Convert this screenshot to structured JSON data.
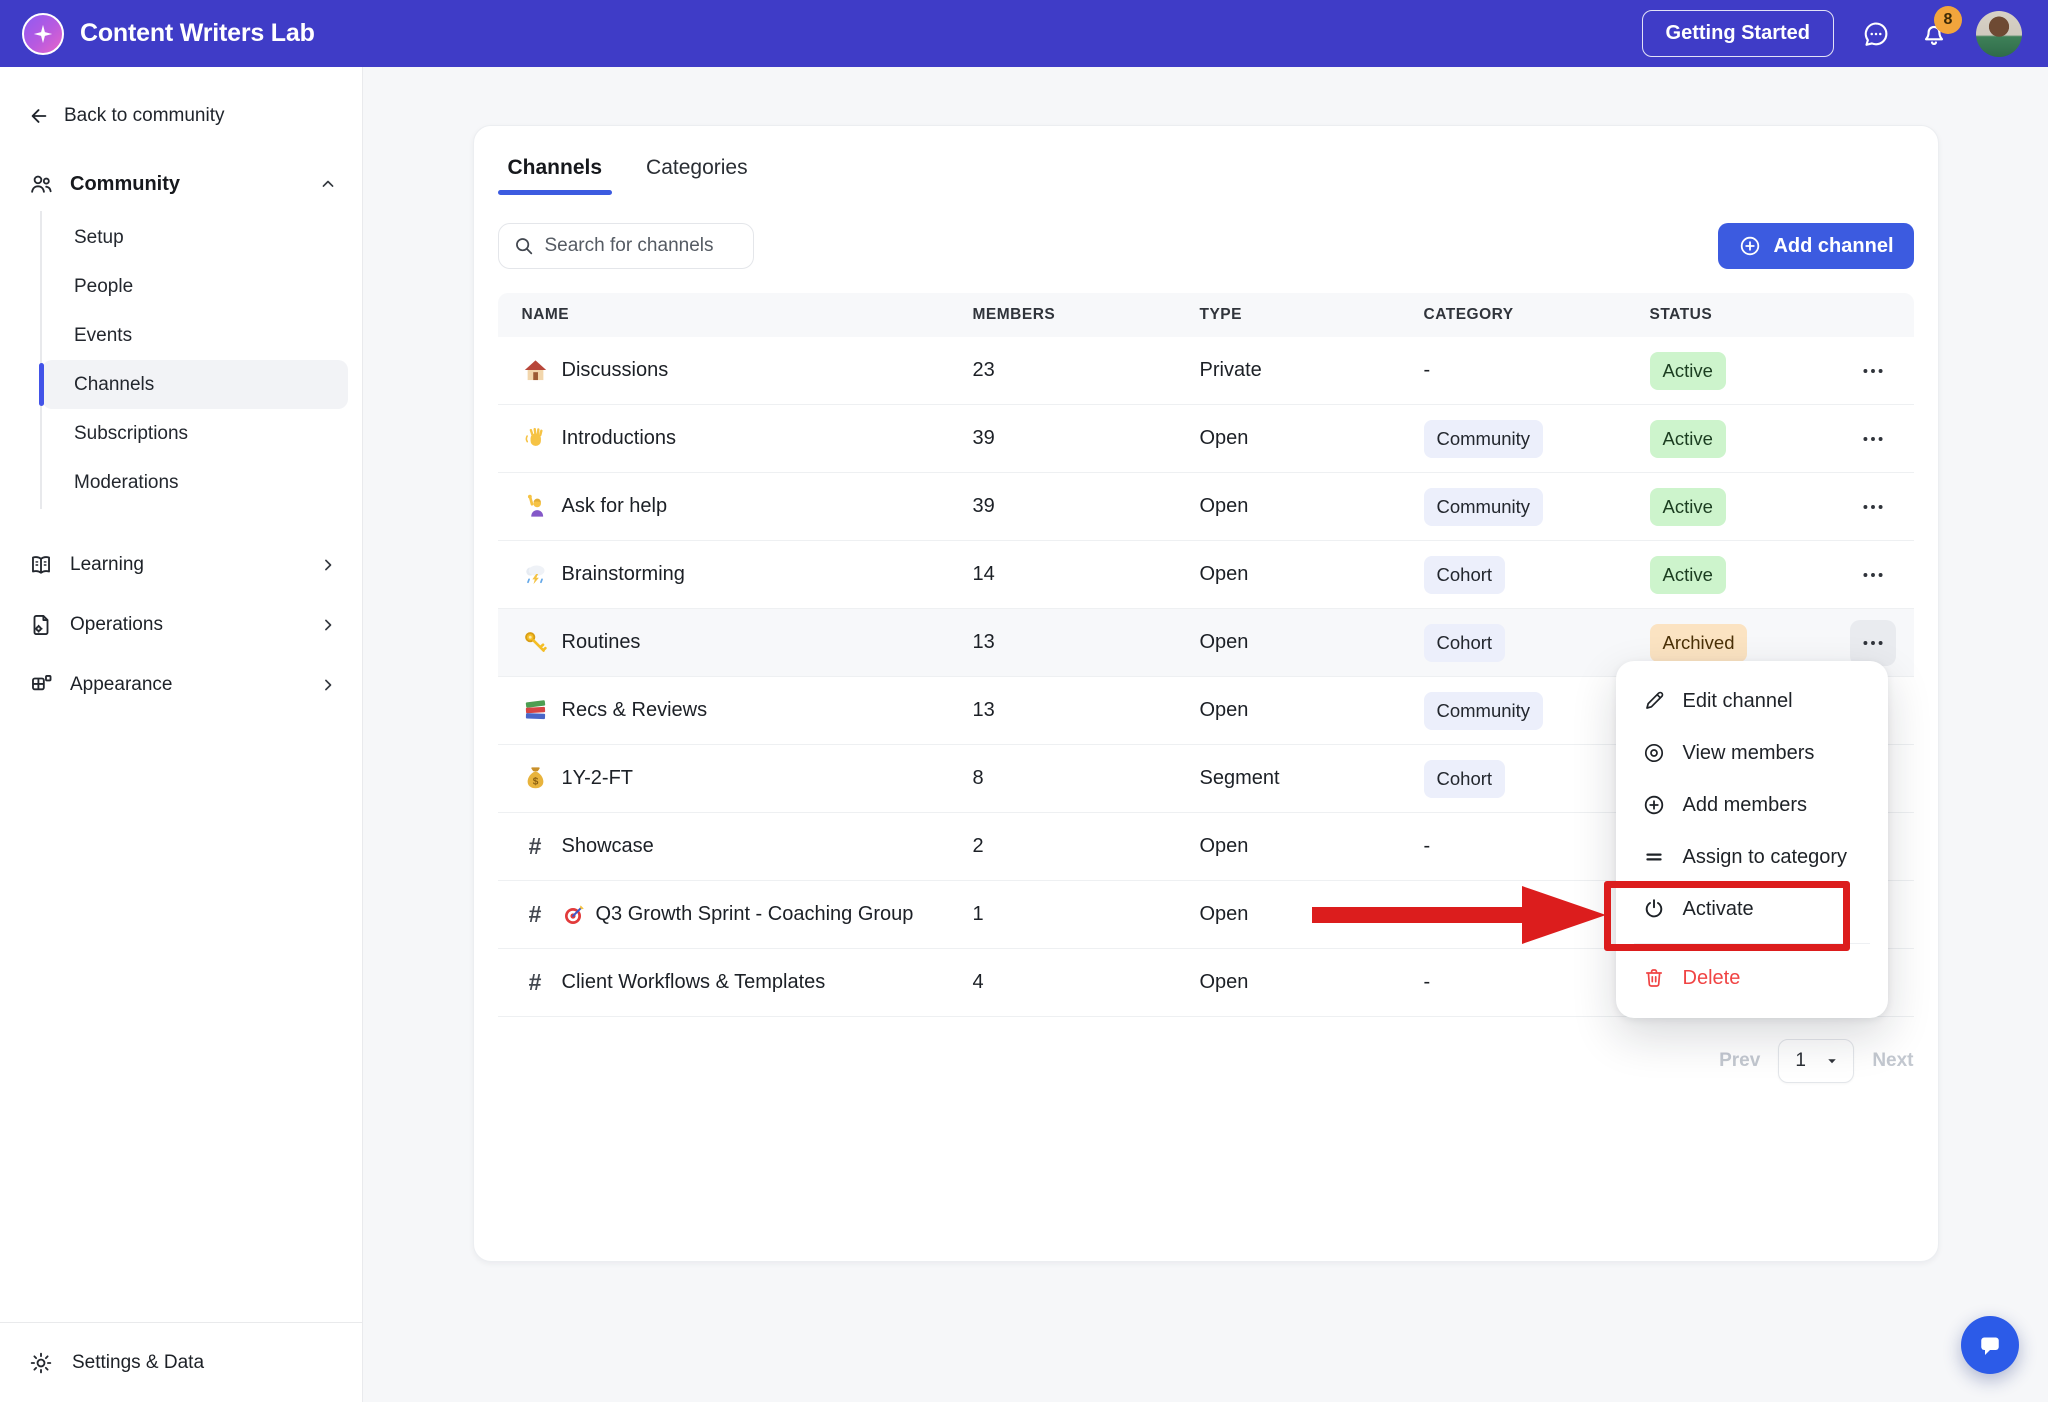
{
  "colors": {
    "topbar_bg": "#3F3CC7",
    "accent": "#3C5BE0",
    "active_badge_bg": "#CDF4CC",
    "active_badge_text": "#1B3D20",
    "archived_badge_bg": "#FBE3C2",
    "archived_badge_text": "#4A3007",
    "category_chip_bg": "#ECEFFB",
    "danger": "#F04444",
    "annotation_red": "#DC1D1D",
    "notification_badge_bg": "#F2A53C"
  },
  "topbar": {
    "brand": "Content Writers Lab",
    "logo_icon": "sparkle-icon",
    "getting_started_label": "Getting Started",
    "messages_icon": "chat-bubble-icon",
    "notifications_icon": "bell-icon",
    "notification_count": "8"
  },
  "sidebar": {
    "back_label": "Back to community",
    "community": {
      "label": "Community",
      "icon": "users-icon",
      "expanded": true,
      "items": [
        "Setup",
        "People",
        "Events",
        "Channels",
        "Subscriptions",
        "Moderations"
      ],
      "active_item": "Channels"
    },
    "sections": [
      {
        "label": "Learning",
        "icon": "book"
      },
      {
        "label": "Operations",
        "icon": "doc-gear"
      },
      {
        "label": "Appearance",
        "icon": "layout"
      }
    ],
    "footer_label": "Settings & Data",
    "footer_icon": "gear-icon"
  },
  "main": {
    "tabs": [
      {
        "label": "Channels",
        "active": true
      },
      {
        "label": "Categories",
        "active": false
      }
    ],
    "search_placeholder": "Search for channels",
    "add_channel_label": "Add channel",
    "table": {
      "headers": [
        "NAME",
        "MEMBERS",
        "TYPE",
        "CATEGORY",
        "STATUS"
      ],
      "rows": [
        {
          "icon": "house",
          "name": "Discussions",
          "members": "23",
          "type": "Private",
          "category": "-",
          "status": "Active",
          "status_kind": "active"
        },
        {
          "icon": "wave",
          "name": "Introductions",
          "members": "39",
          "type": "Open",
          "category": "Community",
          "status": "Active",
          "status_kind": "active"
        },
        {
          "icon": "raise",
          "name": "Ask for help",
          "members": "39",
          "type": "Open",
          "category": "Community",
          "status": "Active",
          "status_kind": "active"
        },
        {
          "icon": "storm",
          "name": "Brainstorming",
          "members": "14",
          "type": "Open",
          "category": "Cohort",
          "status": "Active",
          "status_kind": "active"
        },
        {
          "icon": "key",
          "name": "Routines",
          "members": "13",
          "type": "Open",
          "category": "Cohort",
          "status": "Archived",
          "status_kind": "archived",
          "highlighted": true,
          "menu_open": true
        },
        {
          "icon": "books",
          "name": "Recs & Reviews",
          "members": "13",
          "type": "Open",
          "category": "Community",
          "status": "",
          "status_kind": ""
        },
        {
          "icon": "moneybag",
          "name": "1Y-2-FT",
          "members": "8",
          "type": "Segment",
          "category": "Cohort",
          "status": "",
          "status_kind": ""
        },
        {
          "icon": "hash",
          "name": "Showcase",
          "members": "2",
          "type": "Open",
          "category": "-",
          "status": "",
          "status_kind": ""
        },
        {
          "icon": "hash",
          "name_emoji": "dart",
          "name": "Q3 Growth Sprint - Coaching Group",
          "members": "1",
          "type": "Open",
          "category": "-",
          "status": "",
          "status_kind": ""
        },
        {
          "icon": "hash",
          "name": "Client Workflows & Templates",
          "members": "4",
          "type": "Open",
          "category": "-",
          "status": "",
          "status_kind": ""
        }
      ]
    },
    "pagination": {
      "prev": "Prev",
      "page": "1",
      "next": "Next"
    }
  },
  "context_menu": {
    "items": [
      {
        "icon": "pencil-icon",
        "label": "Edit channel"
      },
      {
        "icon": "eye-icon",
        "label": "View members"
      },
      {
        "icon": "plus-circle-icon",
        "label": "Add members"
      },
      {
        "icon": "equals-icon",
        "label": "Assign to category"
      },
      {
        "icon": "power-icon",
        "label": "Activate",
        "annotated": true
      },
      {
        "icon": "trash-icon",
        "label": "Delete",
        "danger": true,
        "divider_before": true
      }
    ]
  }
}
